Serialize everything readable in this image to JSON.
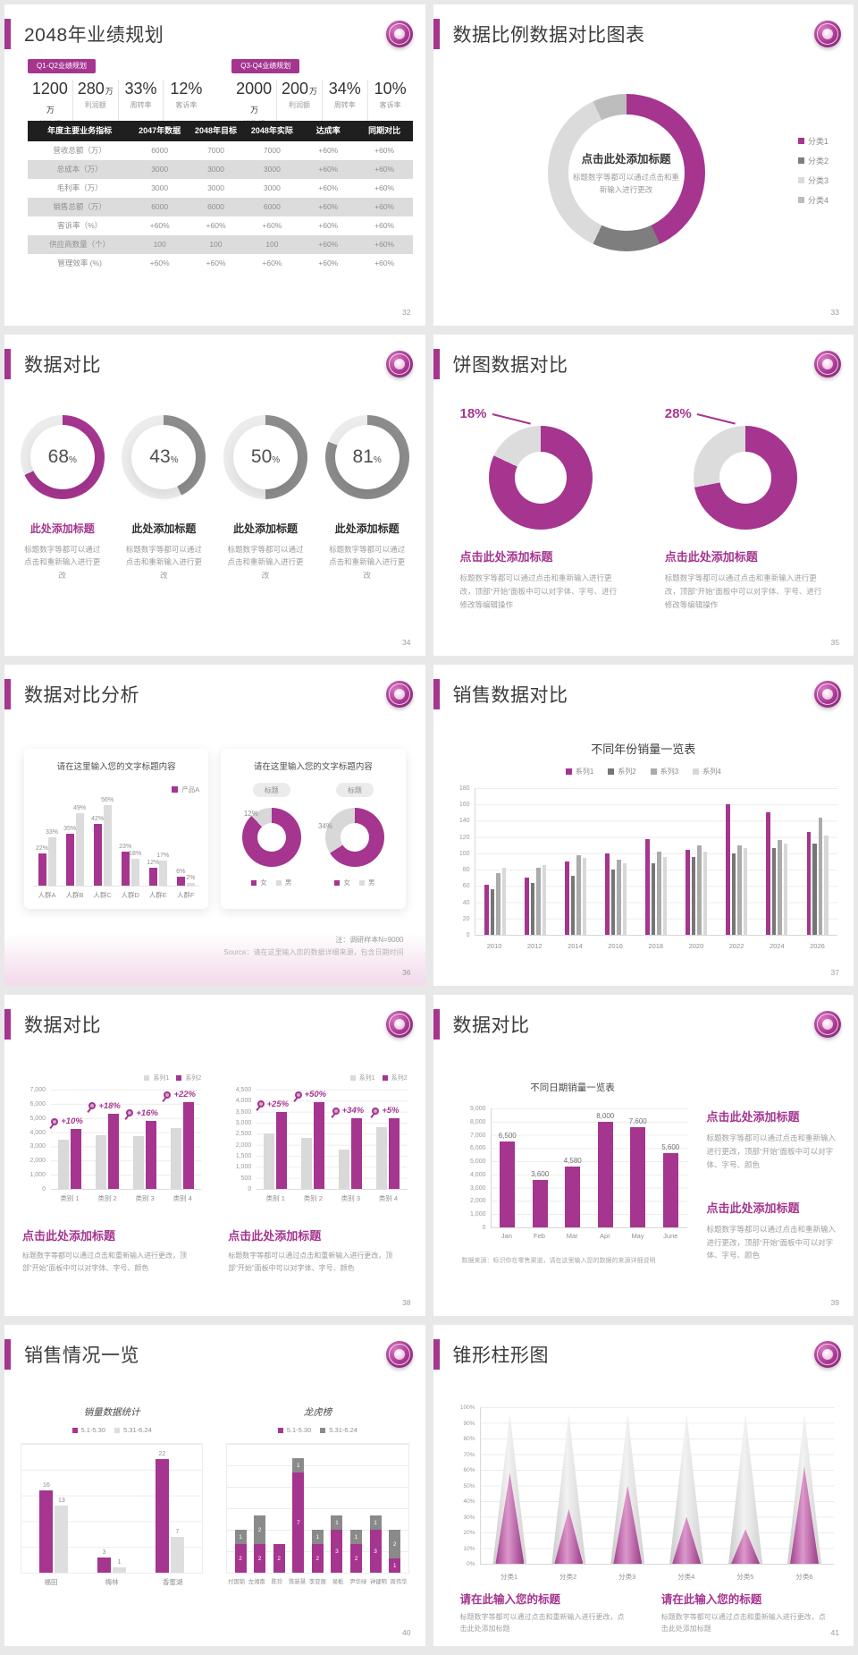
{
  "colors": {
    "accent": "#A5358F",
    "gray_dark": "#767676",
    "gray_mid": "#ABABAB",
    "gray_light": "#D9D9D9",
    "track": "#ECECEC"
  },
  "slides": {
    "s32": {
      "title": "2048年业绩规划",
      "page": "32",
      "groups": [
        {
          "tag": "Q1-Q2业绩规划",
          "stats": [
            [
              "1200",
              "万",
              "销售额"
            ],
            [
              "280",
              "万",
              "利润额"
            ],
            [
              "33%",
              "",
              "周转率"
            ],
            [
              "12%",
              "",
              "客诉率"
            ]
          ]
        },
        {
          "tag": "Q3-Q4业绩规划",
          "stats": [
            [
              "2000",
              "万",
              "销售额"
            ],
            [
              "200",
              "万",
              "利润额"
            ],
            [
              "34%",
              "",
              "周转率"
            ],
            [
              "10%",
              "",
              "客诉率"
            ]
          ]
        }
      ],
      "table": {
        "headers": [
          "年度主要业务指标",
          "2047年数据",
          "2048年目标",
          "2048年实际",
          "达成率",
          "同期对比"
        ],
        "rows": [
          [
            "营收总额（万）",
            "6000",
            "7000",
            "7000",
            "+60%",
            "+60%"
          ],
          [
            "总成本（万）",
            "3000",
            "3000",
            "3000",
            "+60%",
            "+60%"
          ],
          [
            "毛利率（万）",
            "3000",
            "3000",
            "3000",
            "+60%",
            "+60%"
          ],
          [
            "销售总额（万）",
            "6000",
            "6000",
            "6000",
            "+60%",
            "+60%"
          ],
          [
            "客诉率（%）",
            "+60%",
            "+60%",
            "+60%",
            "+60%",
            "+60%"
          ],
          [
            "供应商数量（个）",
            "100",
            "100",
            "100",
            "+60%",
            "+60%"
          ],
          [
            "管理效率 (%)",
            "+60%",
            "+60%",
            "+60%",
            "+60%",
            "+60%"
          ]
        ]
      }
    },
    "s33": {
      "title": "数据比例数据对比图表",
      "page": "33",
      "center_title": "点击此处添加标题",
      "center_sub": "标题数字等都可以通过点击和重新输入进行更改",
      "segments": [
        {
          "label": "分类1",
          "value": 43,
          "color": "#A5358F"
        },
        {
          "label": "分类2",
          "value": 14,
          "color": "#7E7E7E"
        },
        {
          "label": "分类3",
          "value": 36,
          "color": "#DBDBDB"
        },
        {
          "label": "分类4",
          "value": 7,
          "color": "#BDBDBD"
        }
      ]
    },
    "s34": {
      "title": "数据对比",
      "page": "34",
      "caption_title": "此处添加标题",
      "caption_desc": "标题数字等都可以通过点击和重新输入进行更改",
      "gauges": [
        {
          "pct": 68,
          "color": "#A5358F",
          "accent": true
        },
        {
          "pct": 43,
          "color": "#8C8C8C",
          "accent": false
        },
        {
          "pct": 50,
          "color": "#8C8C8C",
          "accent": false
        },
        {
          "pct": 81,
          "color": "#8C8C8C",
          "accent": false
        }
      ]
    },
    "s35": {
      "title": "饼图数据对比",
      "page": "35",
      "caption_title": "点击此处添加标题",
      "caption_desc": "标题数字等都可以通过点击和重新输入进行更改，顶部“开始”面板中可以对字体、字号、进行修改等编辑操作",
      "donuts": [
        {
          "gray_pct": 18,
          "main_pct": 82,
          "label": "18%"
        },
        {
          "gray_pct": 28,
          "main_pct": 72,
          "label": "28%"
        }
      ]
    },
    "s36": {
      "title": "数据对比分析",
      "page": "36",
      "card_title": "请在这里输入您的文字标题内容",
      "bar_chart": {
        "legend": "产品A",
        "categories": [
          "人群A",
          "人群B",
          "人群C",
          "人群D",
          "人群E",
          "人群F"
        ],
        "series": [
          {
            "name": "产品A",
            "color": "#A5358F",
            "values": [
              22,
              35,
              42,
              23,
              12,
              6
            ],
            "labels": [
              "22%",
              "35%",
              "42%",
              "23%",
              "12%",
              "6%"
            ]
          },
          {
            "name": "",
            "color": "#DCDCDC",
            "values": [
              33,
              49,
              56,
              18,
              17,
              2
            ],
            "labels": [
              "33%",
              "49%",
              "56%",
              "18%",
              "17%",
              "2%"
            ]
          }
        ],
        "max": 60
      },
      "donuts": [
        {
          "pill": "标题",
          "gray_pct": 12,
          "main_pct": 88,
          "label": "12%"
        },
        {
          "pill": "标题",
          "gray_pct": 34,
          "main_pct": 66,
          "label": "34%"
        }
      ],
      "donut_legend": [
        {
          "label": "女",
          "color": "#A5358F"
        },
        {
          "label": "男",
          "color": "#DCDCDC"
        }
      ],
      "note1": "注：调研样本N=9000",
      "note2": "Source：请在这里输入您的数据详细来源，包含日期时间"
    },
    "s37": {
      "title": "销售数据对比",
      "page": "37",
      "chart": {
        "title": "不同年份销量一览表",
        "legend": [
          {
            "label": "系列1",
            "color": "#A5358F"
          },
          {
            "label": "系列2",
            "color": "#767676"
          },
          {
            "label": "系列3",
            "color": "#ABABAB"
          },
          {
            "label": "系列4",
            "color": "#D8D8D8"
          }
        ],
        "categories": [
          "2010",
          "2012",
          "2014",
          "2016",
          "2018",
          "2020",
          "2022",
          "2024",
          "2026"
        ],
        "series": [
          {
            "name": "系列1",
            "color": "#A5358F",
            "values": [
              62,
              70,
              90,
              100,
              118,
              104,
              160,
              150,
              126
            ]
          },
          {
            "name": "系列2",
            "color": "#767676",
            "values": [
              56,
              64,
              72,
              80,
              88,
              96,
              100,
              106,
              112
            ]
          },
          {
            "name": "系列3",
            "color": "#ABABAB",
            "values": [
              76,
              82,
              98,
              92,
              102,
              110,
              110,
              116,
              144
            ]
          },
          {
            "name": "系列4",
            "color": "#D8D8D8",
            "values": [
              82,
              86,
              94,
              88,
              96,
              102,
              106,
              112,
              122
            ]
          }
        ],
        "max": 180,
        "ticks": [
          "180",
          "160",
          "140",
          "120",
          "100",
          "80",
          "60",
          "40",
          "20",
          "0"
        ]
      }
    },
    "s38": {
      "title": "数据对比",
      "page": "38",
      "caption_title": "点击此处添加标题",
      "caption_desc": "标题数字等都可以通过点击和重新输入进行更改，顶部“开始”面板中可以对字体、字号、颜色",
      "legend": [
        {
          "label": "系列1",
          "color": "#D9D9D9"
        },
        {
          "label": "系列2",
          "color": "#A5358F"
        }
      ],
      "panels": [
        {
          "max": 7000,
          "ticks": [
            "7,000",
            "6,000",
            "5,000",
            "4,000",
            "3,000",
            "2,000",
            "1,000",
            "0"
          ],
          "categories": [
            "类别 1",
            "类别 2",
            "类别 3",
            "类别 4"
          ],
          "gray": [
            3500,
            3800,
            3700,
            4300
          ],
          "magenta": [
            4200,
            5300,
            4800,
            6200
          ],
          "growth": [
            "+10%",
            "+18%",
            "+16%",
            "+22%"
          ]
        },
        {
          "max": 4500,
          "ticks": [
            "4,500",
            "4,000",
            "3,500",
            "3,000",
            "2,500",
            "2,000",
            "1,500",
            "1,000",
            "500",
            "0"
          ],
          "categories": [
            "类别 1",
            "类别 2",
            "类别 3",
            "类别 4"
          ],
          "gray": [
            2500,
            2300,
            1800,
            2800
          ],
          "magenta": [
            3500,
            4200,
            3200,
            3200
          ],
          "growth": [
            "+25%",
            "+50%",
            "+34%",
            "+5%"
          ]
        }
      ]
    },
    "s39": {
      "title": "数据对比",
      "page": "39",
      "chart": {
        "title": "不同日期销量一览表",
        "categories": [
          "Jan",
          "Feb",
          "Mar",
          "Apr",
          "May",
          "June"
        ],
        "values": [
          6500,
          3600,
          4580,
          8000,
          7600,
          5600
        ],
        "labels": [
          "6,500",
          "3,600",
          "4,580",
          "8,000",
          "7,600",
          "5,600"
        ],
        "max": 9000,
        "ticks": [
          "9,000",
          "8,000",
          "7,000",
          "6,000",
          "5,000",
          "4,000",
          "3,000",
          "2,000",
          "1,000",
          "0"
        ]
      },
      "note": "数据来源：标识你在零售渠道，请在这里输入您的数据的来源详细说明",
      "caption_title": "点击此处添加标题",
      "caption_desc": "标题数字等都可以通过点击和重新输入进行更改，顶部“开始”面板中可以对字体、字号、颜色"
    },
    "s40": {
      "title": "销售情况一览",
      "page": "40",
      "chart_a": {
        "title": "销量数据统计",
        "legend": [
          {
            "label": "5.1-5.30",
            "color": "#A5358F"
          },
          {
            "label": "5.31-6.24",
            "color": "#DEDEDE"
          }
        ],
        "categories": [
          "福田",
          "梅林",
          "香蜜湖"
        ],
        "series": [
          {
            "color": "#A5358F",
            "values": [
              16,
              3,
              22
            ],
            "labels": [
              "16",
              "3",
              "22"
            ]
          },
          {
            "color": "#DEDEDE",
            "values": [
              13,
              1,
              7
            ],
            "labels": [
              "13",
              "1",
              "7"
            ]
          }
        ],
        "max": 25
      },
      "chart_b": {
        "title": "龙虎榜",
        "legend": [
          {
            "label": "5.1-5.30",
            "color": "#A5358F"
          },
          {
            "label": "5.31-6.24",
            "color": "#8A8A8A"
          }
        ],
        "categories": [
          "付国韬",
          "左湘南",
          "陈珍",
          "陈新慧",
          "李亚丽",
          "易栀",
          "尹华绿",
          "钟建明",
          "周伟华"
        ],
        "magenta": [
          2,
          2,
          2,
          7,
          2,
          3,
          2,
          3,
          1
        ],
        "gray": [
          1,
          2,
          0,
          1,
          1,
          1,
          1,
          1,
          2
        ],
        "max": 9
      }
    },
    "s41": {
      "title": "锥形柱形图",
      "page": "41",
      "caption_title": "请在此输入您的标题",
      "caption_desc": "标题数字等都可以通过点击和重新输入进行更改，点击此处添加标题",
      "ticks": [
        "100%",
        "90%",
        "80%",
        "70%",
        "60%",
        "50%",
        "40%",
        "30%",
        "20%",
        "10%",
        "0%"
      ],
      "categories": [
        "分类1",
        "分类2",
        "分类3",
        "分类4",
        "分类5",
        "分类6"
      ],
      "gray_height": 96,
      "magenta_heights": [
        58,
        35,
        50,
        30,
        22,
        62
      ]
    }
  }
}
